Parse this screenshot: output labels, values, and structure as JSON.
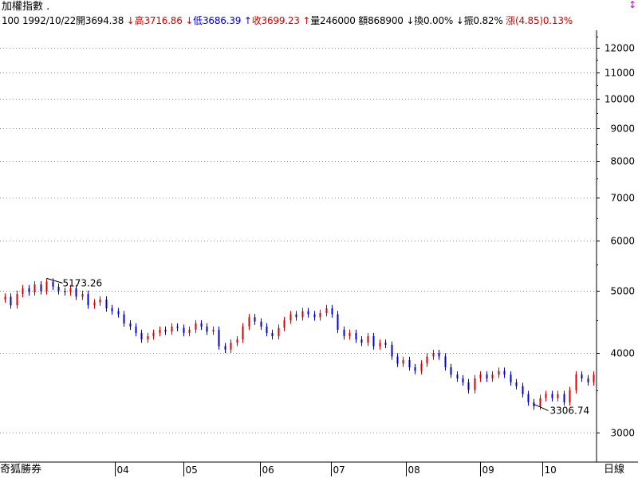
{
  "header": {
    "title": "加權指數 ."
  },
  "info": {
    "period_count": "100",
    "date": "1992/10/22",
    "open_label": "開",
    "open_value": "3694.38",
    "high_arrow": "↓",
    "high_label": "高",
    "high_value": "3716.86",
    "low_arrow": "↓",
    "low_label": "低",
    "low_value": "3686.39",
    "close_arrow": "↑",
    "close_label": "收",
    "close_value": "3699.23",
    "vol_arrow": "↑",
    "vol_label": "量",
    "vol_value": "246000",
    "amt_label": "額",
    "amt_value": "868900",
    "turn_arrow": "↓",
    "turn_label": "換",
    "turn_value": "0.00%",
    "amp_arrow": "↓",
    "amp_label": "振",
    "amp_value": "0.82%",
    "chg_label": "漲",
    "chg_value": "(4.85)0.13%"
  },
  "footer": {
    "brand": "奇狐勝券",
    "period": "日線"
  },
  "scroll_icon": "↕",
  "colors": {
    "up": "#d40000",
    "down": "#0000cc",
    "grid": "#888888"
  },
  "chart_data": {
    "type": "candlestick",
    "y_scale": "log",
    "y_ticks": [
      3000,
      4000,
      5000,
      6000,
      7000,
      8000,
      9000,
      10000,
      11000,
      12000
    ],
    "ylim": [
      2700,
      12800
    ],
    "x_ticks": [
      "04",
      "05",
      "06",
      "07",
      "08",
      "09",
      "10"
    ],
    "annotations": [
      {
        "label": "5173.26",
        "value": 5173.26
      },
      {
        "label": "3306.74",
        "value": 3306.74
      }
    ],
    "close": [
      4900,
      4750,
      4950,
      5050,
      4980,
      5120,
      5000,
      5173,
      5080,
      5000,
      4980,
      5050,
      4900,
      4950,
      4750,
      4800,
      4850,
      4700,
      4650,
      4600,
      4450,
      4400,
      4300,
      4200,
      4250,
      4300,
      4350,
      4320,
      4400,
      4380,
      4300,
      4350,
      4450,
      4400,
      4320,
      4350,
      4100,
      4050,
      4150,
      4200,
      4400,
      4550,
      4480,
      4400,
      4300,
      4250,
      4380,
      4500,
      4600,
      4550,
      4650,
      4600,
      4550,
      4620,
      4700,
      4600,
      4350,
      4250,
      4300,
      4200,
      4150,
      4250,
      4100,
      4150,
      4120,
      3950,
      3850,
      3900,
      3800,
      3750,
      3850,
      3950,
      4000,
      3950,
      3800,
      3700,
      3650,
      3600,
      3500,
      3650,
      3700,
      3650,
      3700,
      3750,
      3700,
      3600,
      3550,
      3450,
      3350,
      3300,
      3400,
      3450,
      3400,
      3450,
      3350,
      3500,
      3700,
      3650,
      3600,
      3700
    ]
  }
}
